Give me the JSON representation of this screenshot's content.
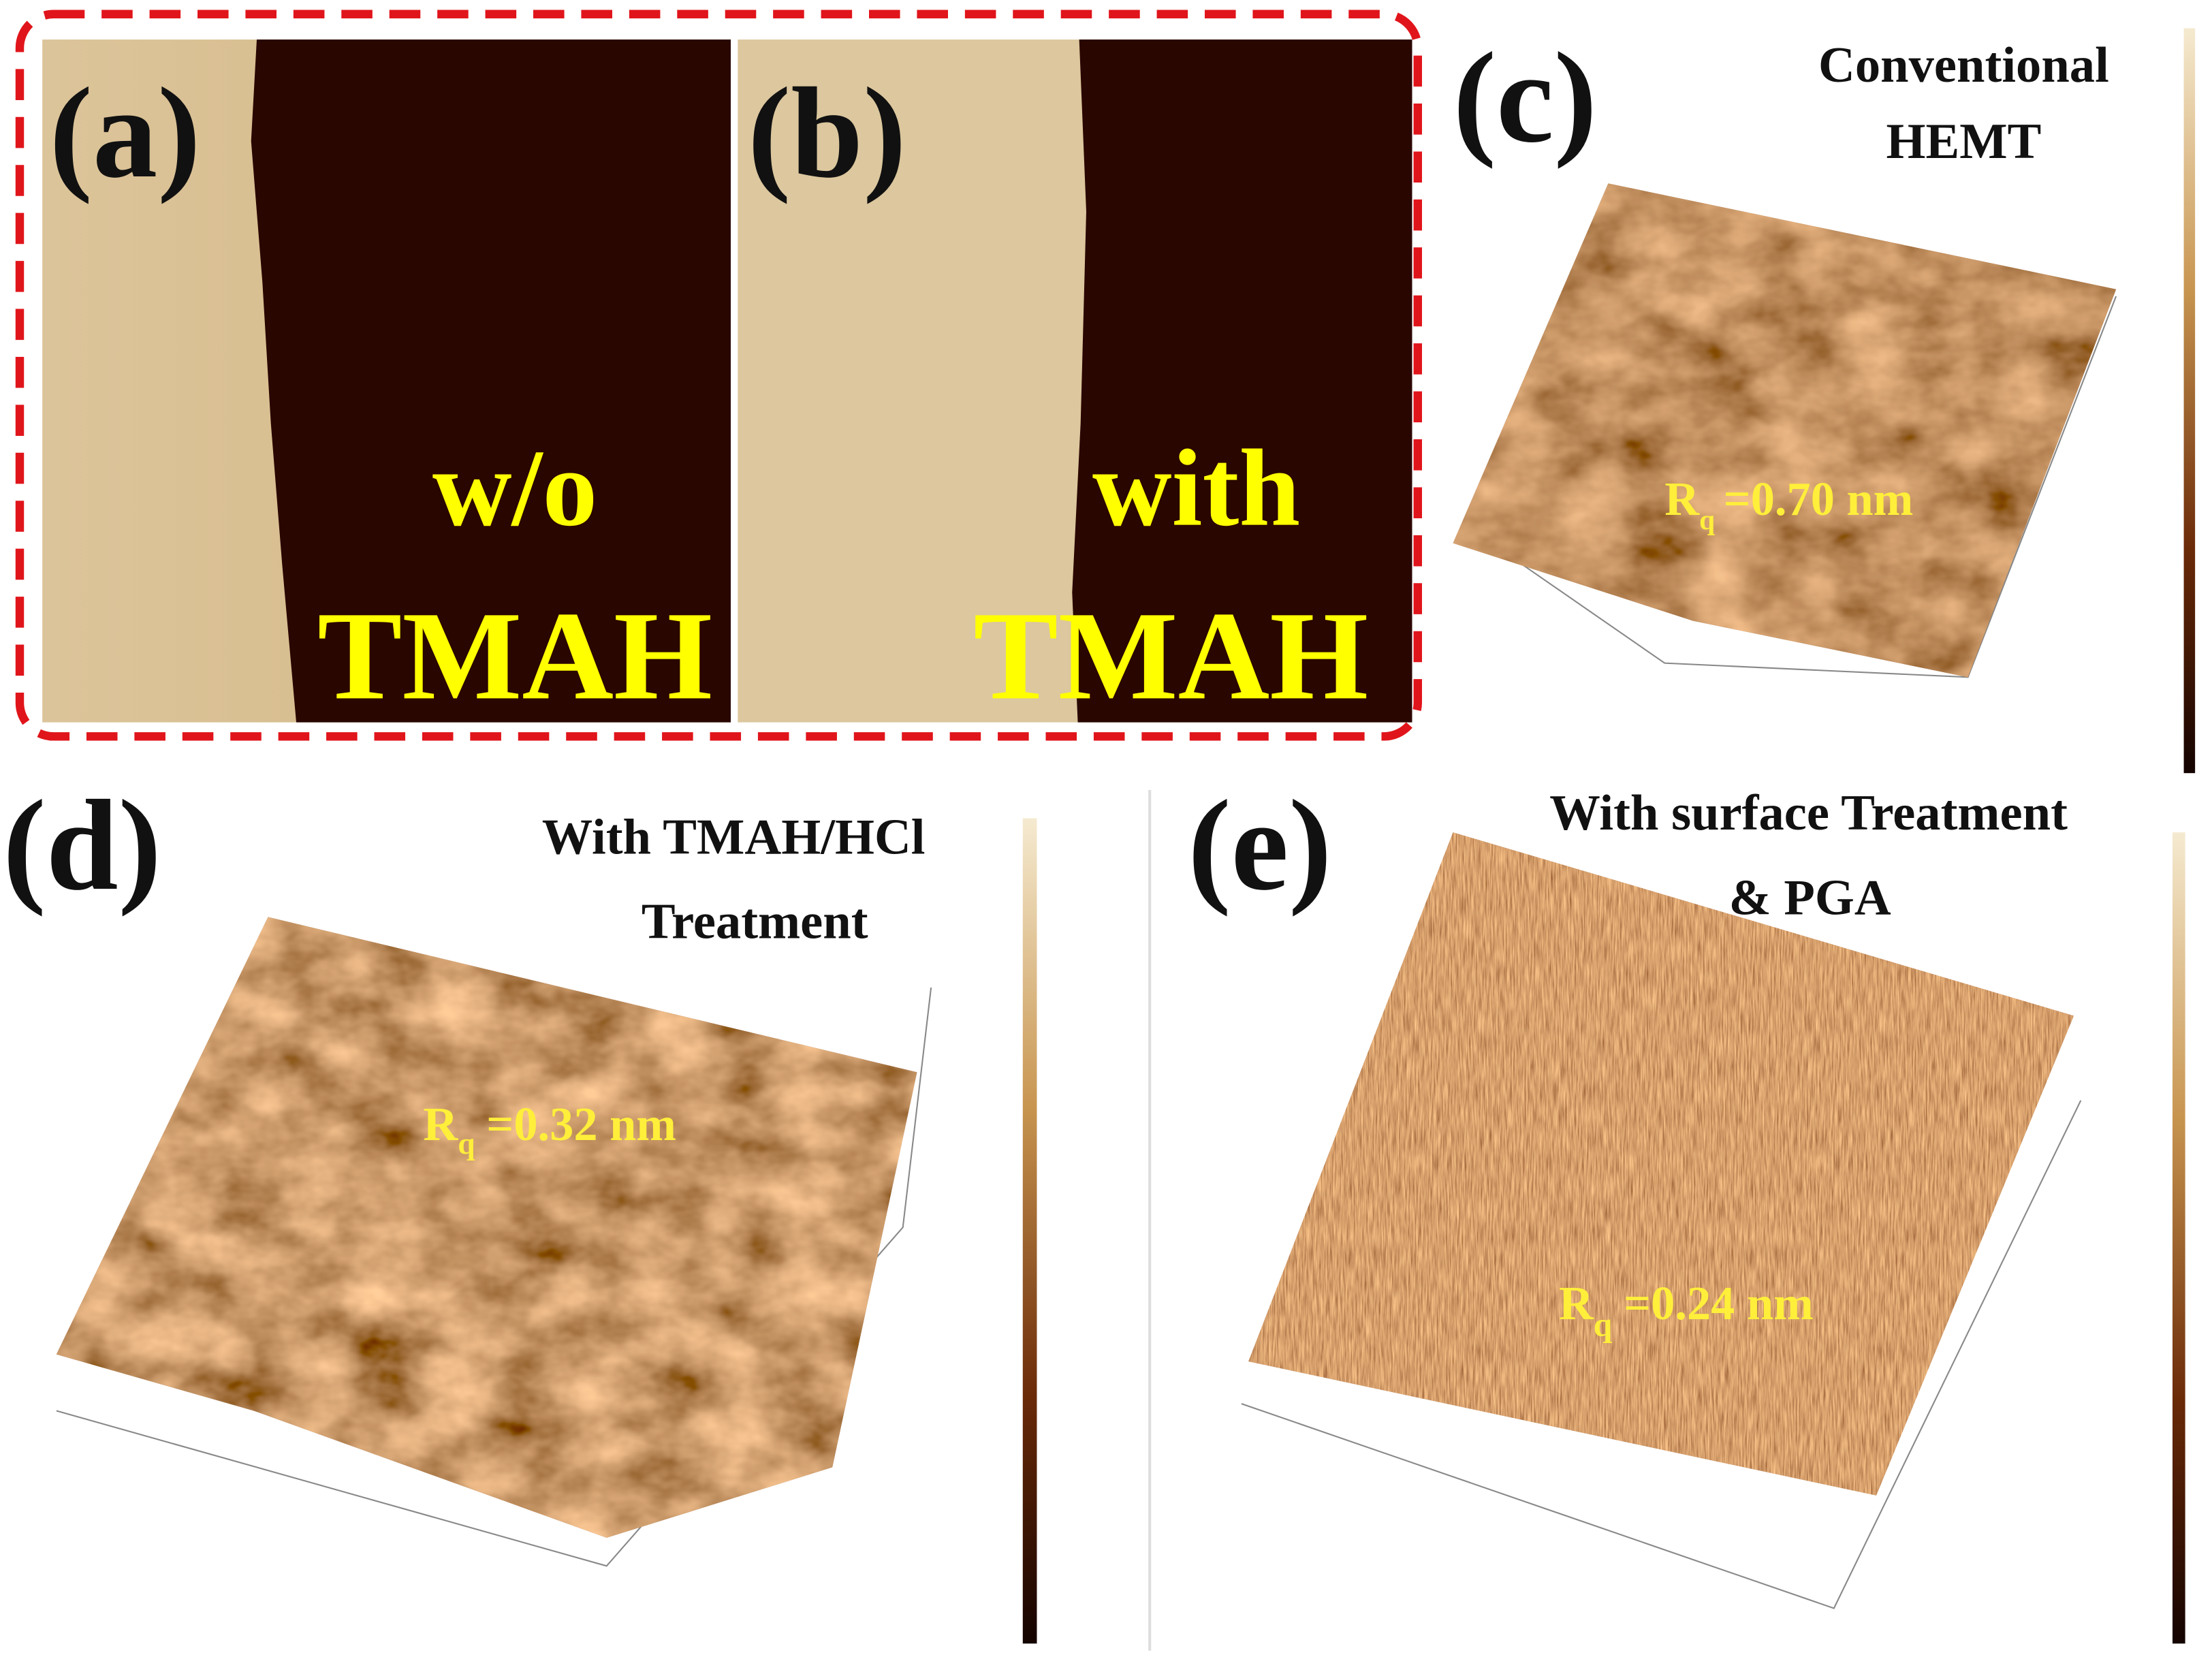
{
  "panels": [
    {
      "label": "(a)",
      "annotation": [
        "w/o",
        "TMAH"
      ]
    },
    {
      "label": "(b)",
      "annotation": [
        "with",
        "TMAH"
      ]
    },
    {
      "label": "(c)",
      "title": [
        "Conventional",
        "HEMT"
      ],
      "roughness": {
        "symbol": "R",
        "subscript": "q",
        "value": "=0.70 nm"
      }
    },
    {
      "label": "(d)",
      "title": [
        "With TMAH/HCl",
        "Treatment"
      ],
      "roughness": {
        "symbol": "R",
        "subscript": "q",
        "value": "=0.32 nm"
      }
    },
    {
      "label": "(e)",
      "title": [
        "With surface Treatment",
        "& PGA"
      ],
      "roughness": {
        "symbol": "R",
        "subscript": "q",
        "value": "=0.24 nm"
      }
    }
  ]
}
